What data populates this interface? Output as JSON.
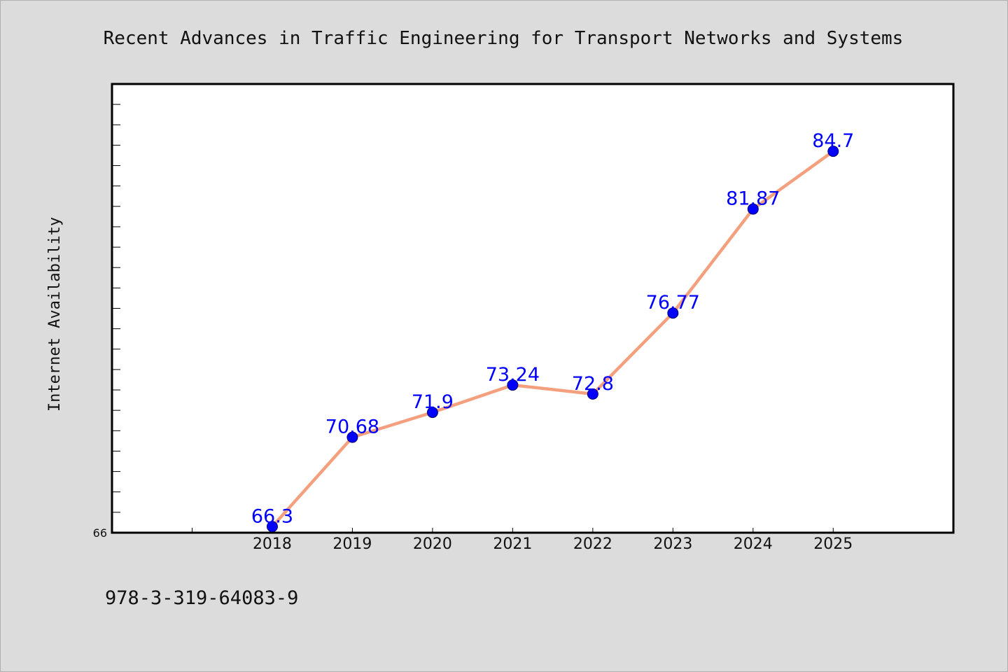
{
  "chart_data": {
    "type": "line",
    "title": "Recent Advances in Traffic Engineering for Transport Networks and Systems",
    "xlabel": "",
    "ylabel": "Internet Availability",
    "categories": [
      "2018",
      "2019",
      "2020",
      "2021",
      "2022",
      "2023",
      "2024",
      "2025"
    ],
    "x_positions": [
      2018,
      2019,
      2020,
      2021,
      2022,
      2023,
      2024,
      2025
    ],
    "xlim": [
      2016,
      2026.5
    ],
    "series": [
      {
        "values": [
          66.3,
          70.68,
          71.9,
          73.24,
          72.8,
          76.77,
          81.87,
          84.7
        ],
        "labels": [
          "66.3",
          "70.68",
          "71.9",
          "73.24",
          "72.8",
          "76.77",
          "81.87",
          "84.7"
        ]
      }
    ],
    "ylim": [
      66,
      88
    ],
    "y_tick_label": "66",
    "y_minor_step": 1,
    "x_minor_ticks": [
      2017,
      2018,
      2019,
      2020,
      2021,
      2022,
      2023,
      2024,
      2025
    ],
    "grid": false,
    "colors": {
      "line": "#f4a07e",
      "marker": "#0000ff",
      "data_label": "#0000ff",
      "plot_background": "#ffffff",
      "figure_background": "#dcdcdc"
    }
  },
  "footer": {
    "isbn": "978-3-319-64083-9"
  }
}
